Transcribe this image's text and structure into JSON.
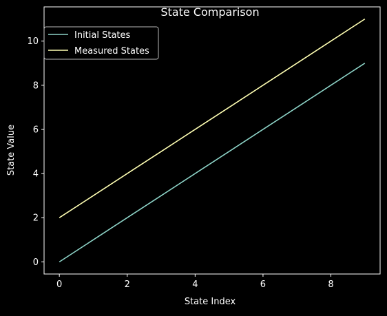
{
  "chart_data": {
    "type": "line",
    "title": "State Comparison",
    "xlabel": "State Index",
    "ylabel": "State Value",
    "x": [
      0,
      1,
      2,
      3,
      4,
      5,
      6,
      7,
      8,
      9
    ],
    "series": [
      {
        "name": "Initial States",
        "color": "#8dd3c7",
        "values": [
          0,
          1,
          2,
          3,
          4,
          5,
          6,
          7,
          8,
          9
        ]
      },
      {
        "name": "Measured States",
        "color": "#ffffb3",
        "values": [
          2,
          3,
          4,
          5,
          6,
          7,
          8,
          9,
          10,
          11
        ]
      }
    ],
    "xlim": [
      -0.45,
      9.45
    ],
    "ylim": [
      -0.55,
      11.55
    ],
    "xticks": [
      0,
      2,
      4,
      6,
      8
    ],
    "yticks": [
      0,
      2,
      4,
      6,
      8,
      10
    ],
    "grid": false,
    "legend_position": "top-left",
    "background": "#000000",
    "foreground": "#ffffff"
  }
}
